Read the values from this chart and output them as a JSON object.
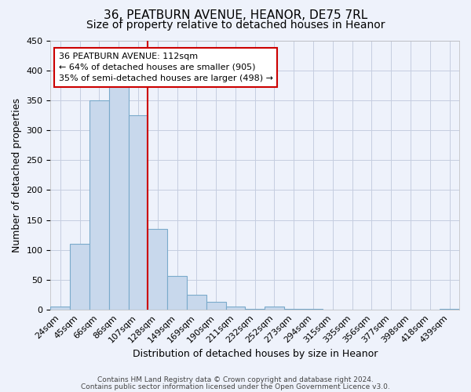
{
  "title": "36, PEATBURN AVENUE, HEANOR, DE75 7RL",
  "subtitle": "Size of property relative to detached houses in Heanor",
  "xlabel": "Distribution of detached houses by size in Heanor",
  "ylabel": "Number of detached properties",
  "bar_labels": [
    "24sqm",
    "45sqm",
    "66sqm",
    "86sqm",
    "107sqm",
    "128sqm",
    "149sqm",
    "169sqm",
    "190sqm",
    "211sqm",
    "232sqm",
    "252sqm",
    "273sqm",
    "294sqm",
    "315sqm",
    "335sqm",
    "356sqm",
    "377sqm",
    "398sqm",
    "418sqm",
    "439sqm"
  ],
  "bar_values": [
    5,
    110,
    350,
    375,
    325,
    135,
    57,
    25,
    13,
    5,
    2,
    5,
    2,
    1,
    0,
    0,
    0,
    0,
    0,
    0,
    2
  ],
  "bar_color": "#c8d8ec",
  "bar_edge_color": "#7aaacb",
  "vline_x_index": 4,
  "vline_color": "#cc0000",
  "annotation_title": "36 PEATBURN AVENUE: 112sqm",
  "annotation_line1": "← 64% of detached houses are smaller (905)",
  "annotation_line2": "35% of semi-detached houses are larger (498) →",
  "annotation_box_color": "#ffffff",
  "annotation_box_edge_color": "#cc0000",
  "ylim": [
    0,
    450
  ],
  "yticks": [
    0,
    50,
    100,
    150,
    200,
    250,
    300,
    350,
    400,
    450
  ],
  "footer_line1": "Contains HM Land Registry data © Crown copyright and database right 2024.",
  "footer_line2": "Contains public sector information licensed under the Open Government Licence v3.0.",
  "bg_color": "#eef2fb",
  "grid_color": "#c5cde0",
  "title_fontsize": 11,
  "subtitle_fontsize": 10,
  "xlabel_fontsize": 9,
  "ylabel_fontsize": 9,
  "tick_fontsize": 8,
  "annotation_fontsize": 8,
  "footer_fontsize": 6.5
}
